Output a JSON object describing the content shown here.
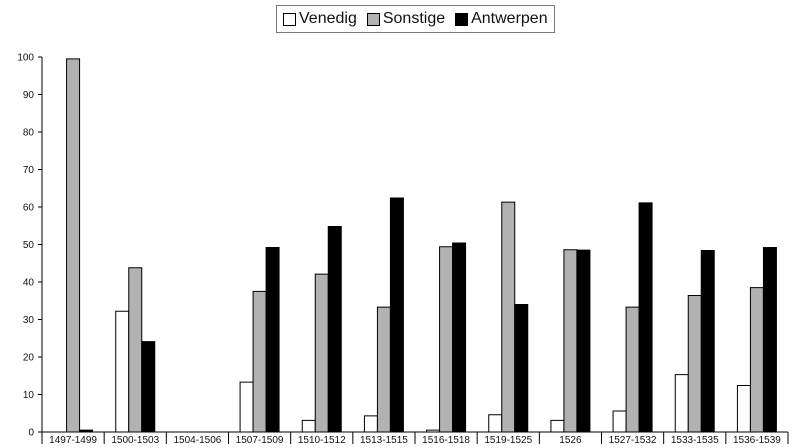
{
  "chart_data": {
    "type": "bar",
    "title": "",
    "xlabel": "",
    "ylabel": "",
    "ylim": [
      0,
      100
    ],
    "yticks": [
      0,
      10,
      20,
      30,
      40,
      50,
      60,
      70,
      80,
      90,
      100
    ],
    "grid": false,
    "legend_position": "top-center",
    "categories": [
      "1497-1499",
      "1500-1503",
      "1504-1506",
      "1507-1509",
      "1510-1512",
      "1513-1515",
      "1516-1518",
      "1519-1525",
      "1526",
      "1527-1532",
      "1533-1535",
      "1536-1539"
    ],
    "series": [
      {
        "name": "Venedig",
        "color": "#ffffff",
        "values": [
          0,
          32.2,
          0,
          13.3,
          3.1,
          4.3,
          0.5,
          4.6,
          3.1,
          5.6,
          15.3,
          12.4
        ]
      },
      {
        "name": "Sonstige",
        "color": "#b2b2b2",
        "values": [
          99.5,
          43.8,
          0,
          37.5,
          42.1,
          33.3,
          49.4,
          61.3,
          48.6,
          33.3,
          36.4,
          38.5
        ]
      },
      {
        "name": "Antwerpen",
        "color": "#000000",
        "values": [
          0.5,
          24.1,
          0,
          49.2,
          54.8,
          62.4,
          50.4,
          34.0,
          48.5,
          61.1,
          48.4,
          49.2
        ]
      }
    ]
  }
}
